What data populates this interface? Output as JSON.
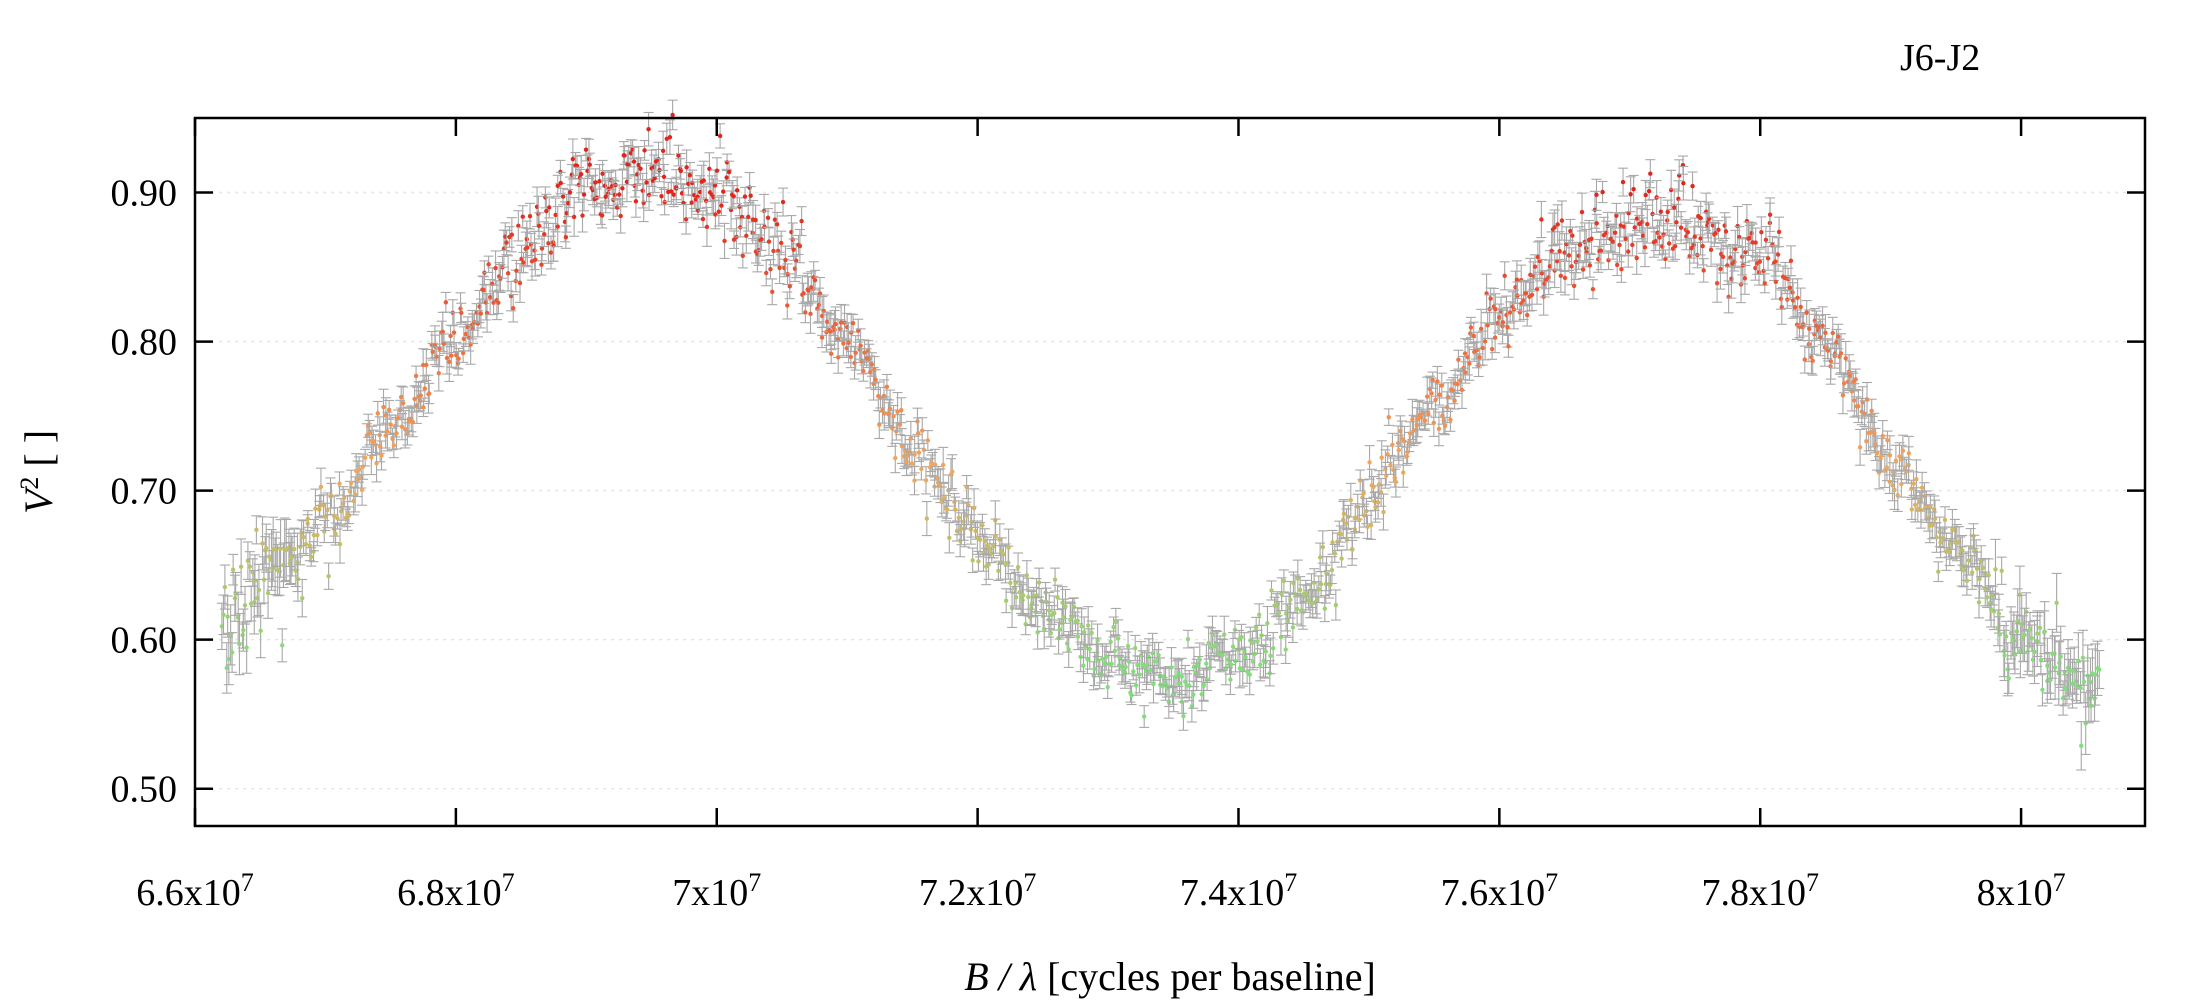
{
  "chart_data": {
    "type": "scatter",
    "title": "J6-J2",
    "xlabel": {
      "var": "B / λ",
      "unit": " [cycles per baseline]"
    },
    "ylabel": {
      "base": "V",
      "sup": "2",
      "unit": " [ ]"
    },
    "xlim": [
      66000000,
      80950000
    ],
    "ylim": [
      0.475,
      0.95
    ],
    "x_ticks": [
      {
        "value": 66000000,
        "mantissa": "6.6x10",
        "exp": "7"
      },
      {
        "value": 68000000,
        "mantissa": "6.8x10",
        "exp": "7"
      },
      {
        "value": 70000000,
        "mantissa": "7x10",
        "exp": "7"
      },
      {
        "value": 72000000,
        "mantissa": "7.2x10",
        "exp": "7"
      },
      {
        "value": 74000000,
        "mantissa": "7.4x10",
        "exp": "7"
      },
      {
        "value": 76000000,
        "mantissa": "7.6x10",
        "exp": "7"
      },
      {
        "value": 78000000,
        "mantissa": "7.8x10",
        "exp": "7"
      },
      {
        "value": 80000000,
        "mantissa": "8x10",
        "exp": "7"
      }
    ],
    "y_ticks": [
      {
        "value": 0.5,
        "label": "0.50"
      },
      {
        "value": 0.6,
        "label": "0.60"
      },
      {
        "value": 0.7,
        "label": "0.70"
      },
      {
        "value": 0.8,
        "label": "0.80"
      },
      {
        "value": 0.9,
        "label": "0.90"
      }
    ],
    "grid": "horizontal dotted",
    "errorbars": true,
    "color_by_value": {
      "low": "#7fe07a",
      "mid": "#f5a55a",
      "high": "#e2241c"
    },
    "trend": [
      {
        "x": 66200000,
        "y": 0.615
      },
      {
        "x": 66500000,
        "y": 0.645
      },
      {
        "x": 67000000,
        "y": 0.675
      },
      {
        "x": 67500000,
        "y": 0.74
      },
      {
        "x": 68000000,
        "y": 0.805
      },
      {
        "x": 68500000,
        "y": 0.86
      },
      {
        "x": 69000000,
        "y": 0.905
      },
      {
        "x": 69500000,
        "y": 0.915
      },
      {
        "x": 70000000,
        "y": 0.9
      },
      {
        "x": 70500000,
        "y": 0.86
      },
      {
        "x": 71000000,
        "y": 0.795
      },
      {
        "x": 71500000,
        "y": 0.73
      },
      {
        "x": 72000000,
        "y": 0.67
      },
      {
        "x": 72500000,
        "y": 0.62
      },
      {
        "x": 73000000,
        "y": 0.585
      },
      {
        "x": 73400000,
        "y": 0.575
      },
      {
        "x": 74000000,
        "y": 0.59
      },
      {
        "x": 74500000,
        "y": 0.625
      },
      {
        "x": 75000000,
        "y": 0.695
      },
      {
        "x": 75500000,
        "y": 0.755
      },
      {
        "x": 76000000,
        "y": 0.815
      },
      {
        "x": 76500000,
        "y": 0.86
      },
      {
        "x": 77000000,
        "y": 0.875
      },
      {
        "x": 77500000,
        "y": 0.875
      },
      {
        "x": 78000000,
        "y": 0.855
      },
      {
        "x": 78500000,
        "y": 0.8
      },
      {
        "x": 79000000,
        "y": 0.72
      },
      {
        "x": 79500000,
        "y": 0.66
      },
      {
        "x": 80000000,
        "y": 0.605
      },
      {
        "x": 80300000,
        "y": 0.58
      },
      {
        "x": 80600000,
        "y": 0.555
      }
    ],
    "point_count": 1300,
    "scatter_sd": 0.011,
    "error_sd": 0.009
  }
}
